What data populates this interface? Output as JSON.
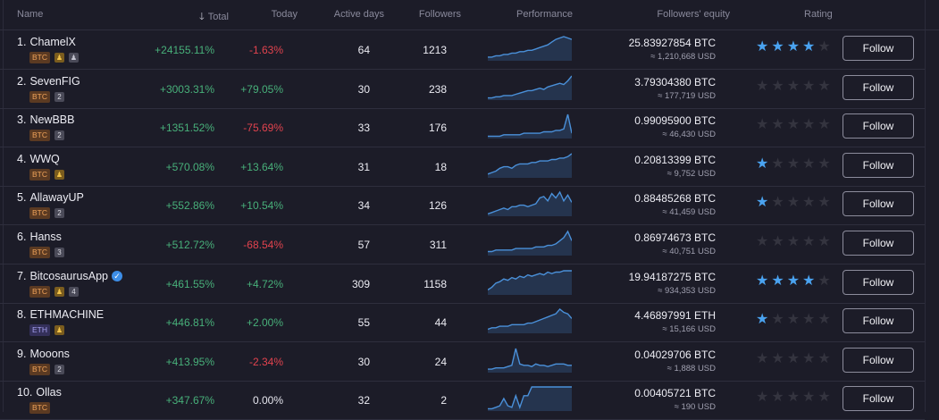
{
  "header": {
    "name": "Name",
    "total": "Total",
    "today": "Today",
    "active_days": "Active days",
    "followers": "Followers",
    "performance": "Performance",
    "followers_equity": "Followers' equity",
    "rating": "Rating",
    "sort_icon": "arrow-down-icon"
  },
  "colors": {
    "positive": "#48b07a",
    "negative": "#e2434e",
    "star": "#4aa3f0",
    "spark": "#4a90d9"
  },
  "rows": [
    {
      "rank": "1.",
      "name": "ChamelX",
      "currency": "BTC",
      "badges": [
        {
          "t": "gold",
          "v": "♟"
        },
        {
          "t": "grey",
          "v": "♟"
        }
      ],
      "total": "+24155.11%",
      "today": "-1.63%",
      "dir": "down",
      "days": "64",
      "followers": "1213",
      "equity": "25.83927854 BTC",
      "usd": "≈ 1,210,668 USD",
      "rating": 4,
      "follow": "Follow",
      "perf": [
        2,
        2,
        3,
        3,
        4,
        4,
        5,
        5,
        6,
        6,
        7,
        7,
        8,
        9,
        10,
        11,
        13,
        15,
        16,
        17,
        16,
        15
      ]
    },
    {
      "rank": "2.",
      "name": "SevenFIG",
      "currency": "BTC",
      "badges": [
        {
          "t": "num",
          "v": "2"
        }
      ],
      "total": "+3003.31%",
      "today": "+79.05%",
      "dir": "up",
      "days": "30",
      "followers": "238",
      "equity": "3.79304380 BTC",
      "usd": "≈ 177,719 USD",
      "rating": 0,
      "follow": "Follow",
      "perf": [
        1,
        1,
        2,
        2,
        3,
        3,
        3,
        4,
        5,
        6,
        7,
        7,
        8,
        9,
        8,
        10,
        11,
        12,
        13,
        12,
        15,
        19
      ]
    },
    {
      "rank": "3.",
      "name": "NewBBB",
      "currency": "BTC",
      "badges": [
        {
          "t": "num",
          "v": "2"
        }
      ],
      "total": "+1351.52%",
      "today": "-75.69%",
      "dir": "down",
      "days": "33",
      "followers": "176",
      "equity": "0.99095900 BTC",
      "usd": "≈ 46,430 USD",
      "rating": 0,
      "follow": "Follow",
      "perf": [
        1,
        1,
        1,
        1,
        2,
        2,
        2,
        2,
        2,
        3,
        3,
        3,
        3,
        3,
        4,
        4,
        4,
        5,
        5,
        6,
        16,
        3
      ]
    },
    {
      "rank": "4.",
      "name": "WWQ",
      "currency": "BTC",
      "badges": [
        {
          "t": "gold",
          "v": "♟"
        }
      ],
      "total": "+570.08%",
      "today": "+13.64%",
      "dir": "up",
      "days": "31",
      "followers": "18",
      "equity": "0.20813399 BTC",
      "usd": "≈ 9,752 USD",
      "rating": 1,
      "follow": "Follow",
      "perf": [
        2,
        3,
        4,
        6,
        7,
        7,
        6,
        8,
        9,
        9,
        9,
        10,
        10,
        11,
        11,
        11,
        12,
        12,
        13,
        13,
        14,
        16
      ]
    },
    {
      "rank": "5.",
      "name": "AllawayUP",
      "currency": "BTC",
      "badges": [
        {
          "t": "num",
          "v": "2"
        }
      ],
      "total": "+552.86%",
      "today": "+10.54%",
      "dir": "up",
      "days": "34",
      "followers": "126",
      "equity": "0.88485268 BTC",
      "usd": "≈ 41,459 USD",
      "rating": 1,
      "follow": "Follow",
      "perf": [
        1,
        2,
        3,
        4,
        5,
        4,
        6,
        6,
        7,
        7,
        6,
        7,
        8,
        12,
        13,
        10,
        15,
        12,
        16,
        10,
        14,
        9
      ]
    },
    {
      "rank": "6.",
      "name": "Hanss",
      "currency": "BTC",
      "badges": [
        {
          "t": "num",
          "v": "3"
        }
      ],
      "total": "+512.72%",
      "today": "-68.54%",
      "dir": "down",
      "days": "57",
      "followers": "311",
      "equity": "0.86974673 BTC",
      "usd": "≈ 40,751 USD",
      "rating": 0,
      "follow": "Follow",
      "perf": [
        2,
        2,
        3,
        3,
        3,
        3,
        3,
        4,
        4,
        4,
        4,
        4,
        5,
        5,
        5,
        6,
        6,
        7,
        9,
        11,
        15,
        9
      ]
    },
    {
      "rank": "7.",
      "name": "BitcosaurusApp",
      "verified": true,
      "currency": "BTC",
      "badges": [
        {
          "t": "gold",
          "v": "♟"
        },
        {
          "t": "num",
          "v": "4"
        }
      ],
      "total": "+461.55%",
      "today": "+4.72%",
      "dir": "up",
      "days": "309",
      "followers": "1158",
      "equity": "19.94187275 BTC",
      "usd": "≈ 934,353 USD",
      "rating": 4,
      "follow": "Follow",
      "perf": [
        3,
        5,
        8,
        9,
        11,
        10,
        12,
        11,
        13,
        12,
        14,
        13,
        14,
        15,
        14,
        16,
        15,
        16,
        16,
        17,
        17,
        17
      ]
    },
    {
      "rank": "8.",
      "name": "ETHMACHINE",
      "currency": "ETH",
      "badges": [
        {
          "t": "gold",
          "v": "♟"
        }
      ],
      "total": "+446.81%",
      "today": "+2.00%",
      "dir": "up",
      "days": "55",
      "followers": "44",
      "equity": "4.46897991 ETH",
      "usd": "≈ 15,166 USD",
      "rating": 1,
      "follow": "Follow",
      "perf": [
        2,
        3,
        3,
        4,
        4,
        4,
        5,
        5,
        5,
        5,
        6,
        6,
        7,
        8,
        9,
        10,
        11,
        12,
        15,
        13,
        12,
        9
      ]
    },
    {
      "rank": "9.",
      "name": "Mooons",
      "currency": "BTC",
      "badges": [
        {
          "t": "num",
          "v": "2"
        }
      ],
      "total": "+413.95%",
      "today": "-2.34%",
      "dir": "down",
      "days": "30",
      "followers": "24",
      "equity": "0.04029706 BTC",
      "usd": "≈ 1,888 USD",
      "rating": 0,
      "follow": "Follow",
      "perf": [
        2,
        2,
        3,
        3,
        3,
        4,
        5,
        18,
        6,
        5,
        5,
        4,
        6,
        5,
        5,
        4,
        5,
        6,
        6,
        6,
        5,
        5
      ]
    },
    {
      "rank": "10.",
      "name": "Ollas",
      "currency": "BTC",
      "badges": [],
      "total": "+347.67%",
      "today": "0.00%",
      "dir": "flat",
      "days": "32",
      "followers": "2",
      "equity": "0.00405721 BTC",
      "usd": "≈ 190 USD",
      "rating": 0,
      "follow": "Follow",
      "perf": [
        1,
        1,
        2,
        3,
        8,
        3,
        2,
        10,
        2,
        10,
        10,
        16,
        16,
        16,
        16,
        16,
        16,
        16,
        16,
        16,
        16,
        16
      ]
    }
  ]
}
